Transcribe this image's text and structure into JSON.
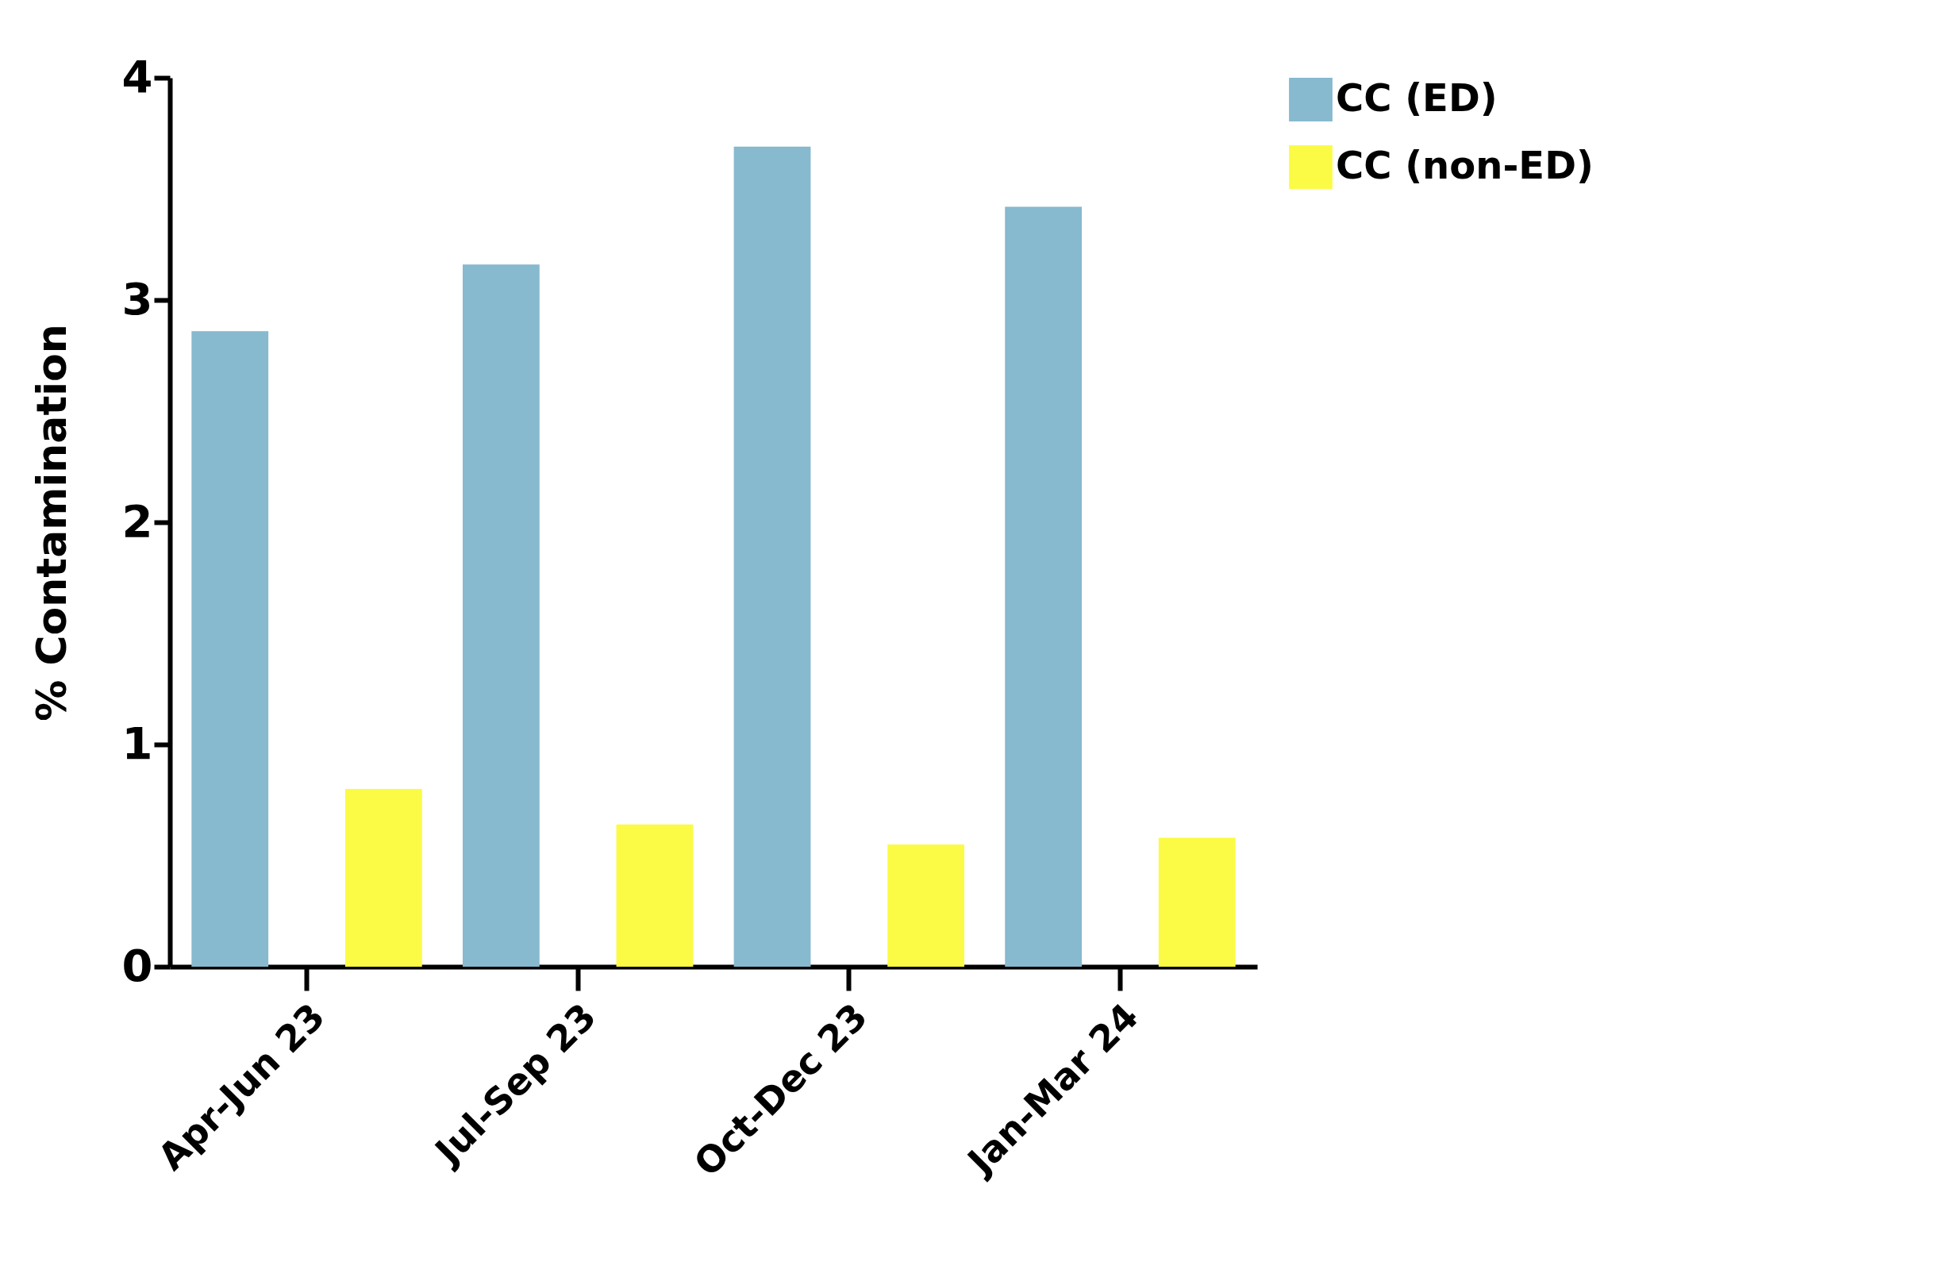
{
  "chart_data": {
    "type": "bar",
    "ylabel": "% Contamination",
    "categories": [
      "Apr-Jun 23",
      "Jul-Sep 23",
      "Oct-Dec 23",
      "Jan-Mar 24"
    ],
    "series": [
      {
        "name": "CC (ED)",
        "color": "#87b9cf",
        "values": [
          2.86,
          3.16,
          3.69,
          3.42
        ]
      },
      {
        "name": "CC (non-ED)",
        "color": "#fbfb45",
        "values": [
          0.8,
          0.64,
          0.55,
          0.58
        ]
      }
    ],
    "ylim": [
      0,
      4
    ],
    "yticks": [
      0,
      1,
      2,
      3,
      4
    ],
    "grid": false,
    "legend": "right"
  }
}
